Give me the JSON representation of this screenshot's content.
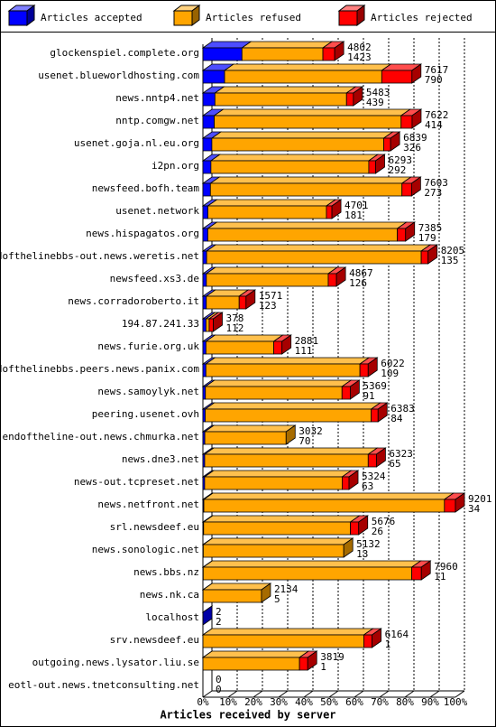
{
  "chart_data": {
    "type": "bar",
    "orientation": "horizontal",
    "stacked": true,
    "title": "Articles received by server",
    "categories": [
      "glockenspiel.complete.org",
      "usenet.blueworldhosting.com",
      "news.nntp4.net",
      "nntp.comgw.net",
      "usenet.goja.nl.eu.org",
      "i2pn.org",
      "newsfeed.bofh.team",
      "usenet.network",
      "news.hispagatos.org",
      "endofthelinebbs-out.news.weretis.net",
      "newsfeed.xs3.de",
      "news.corradoroberto.it",
      "194.87.241.33",
      "news.furie.org.uk",
      "endofthelinebbs.peers.news.panix.com",
      "news.samoylyk.net",
      "peering.usenet.ovh",
      "endoftheline-out.news.chmurka.net",
      "news.dne3.net",
      "news-out.tcpreset.net",
      "news.netfront.net",
      "srl.newsdeef.eu",
      "news.sonologic.net",
      "news.bbs.nz",
      "news.nk.ca",
      "localhost",
      "srv.newsdeef.eu",
      "outgoing.news.lysator.liu.se",
      "eotl-out.news.tnetconsulting.net"
    ],
    "totals": [
      4802,
      7617,
      5483,
      7622,
      6839,
      6293,
      7603,
      4701,
      7385,
      8205,
      4867,
      1571,
      378,
      2881,
      6022,
      5369,
      6383,
      3032,
      6323,
      5324,
      9201,
      5676,
      5132,
      7960,
      2134,
      2,
      6164,
      3819,
      0
    ],
    "series": [
      {
        "name": "Articles accepted",
        "color": "#0000ff",
        "values": [
          1423,
          790,
          439,
          414,
          326,
          292,
          273,
          181,
          179,
          135,
          126,
          123,
          112,
          111,
          109,
          91,
          84,
          70,
          65,
          63,
          34,
          26,
          13,
          11,
          5,
          2,
          1,
          1,
          0
        ]
      },
      {
        "name": "Articles refused",
        "color": "#ffa500",
        "values": [
          2949,
          5727,
          4794,
          6808,
          6263,
          5751,
          6980,
          4320,
          6906,
          7820,
          4441,
          1198,
          116,
          2470,
          5613,
          4978,
          6049,
          2962,
          5958,
          5011,
          8767,
          5350,
          5119,
          7599,
          2129,
          0,
          5863,
          3518,
          0
        ]
      },
      {
        "name": "Articles rejected",
        "color": "#ff0000",
        "values": [
          430,
          1100,
          250,
          400,
          250,
          250,
          350,
          200,
          300,
          250,
          300,
          250,
          150,
          300,
          300,
          300,
          250,
          0,
          300,
          250,
          400,
          300,
          0,
          350,
          0,
          0,
          300,
          300,
          0
        ]
      }
    ],
    "xlim": [
      0,
      9201
    ],
    "xticks": [
      {
        "value": 0,
        "label": "0%"
      },
      {
        "value": 920.1,
        "label": "10%"
      },
      {
        "value": 1840.2,
        "label": "20%"
      },
      {
        "value": 2760.3,
        "label": "30%"
      },
      {
        "value": 3680.4,
        "label": "40%"
      },
      {
        "value": 4600.5,
        "label": "50%"
      },
      {
        "value": 5520.6,
        "label": "60%"
      },
      {
        "value": 6440.7,
        "label": "70%"
      },
      {
        "value": 7360.8,
        "label": "80%"
      },
      {
        "value": 8280.9,
        "label": "90%"
      },
      {
        "value": 9201,
        "label": "100%"
      }
    ],
    "grid": true,
    "legend": "top"
  }
}
